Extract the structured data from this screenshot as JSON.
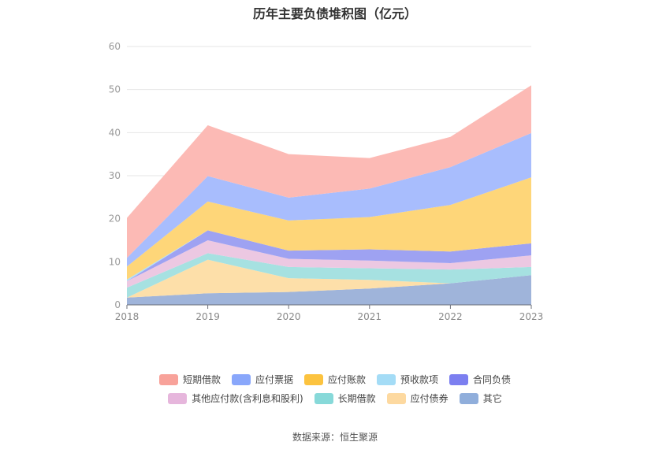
{
  "chart_data": {
    "type": "area",
    "stacked": true,
    "title": "历年主要负债堆积图（亿元）",
    "x": [
      "2018",
      "2019",
      "2020",
      "2021",
      "2022",
      "2023"
    ],
    "ylim": [
      0,
      60
    ],
    "yticks": [
      0,
      10,
      20,
      30,
      40,
      50,
      60
    ],
    "grid": true,
    "legend_position": "bottom",
    "series": [
      {
        "name": "其它",
        "color": "#9fb4da",
        "values": [
          1.7,
          2.7,
          3.0,
          3.8,
          5.0,
          6.9
        ]
      },
      {
        "name": "应付债券",
        "color": "#fddfa9",
        "values": [
          0.0,
          7.8,
          3.2,
          2.0,
          0.0,
          0.0
        ]
      },
      {
        "name": "长期借款",
        "color": "#a6e1e1",
        "values": [
          2.3,
          1.5,
          2.6,
          2.7,
          3.2,
          1.9
        ]
      },
      {
        "name": "其他应付款(含利息和股利)",
        "color": "#ecc8e2",
        "values": [
          1.5,
          3.0,
          1.9,
          1.8,
          1.5,
          2.7
        ]
      },
      {
        "name": "合同负债",
        "color": "#9ea2f2",
        "values": [
          0.0,
          2.3,
          1.9,
          2.6,
          2.7,
          2.8
        ]
      },
      {
        "name": "预收款项",
        "color": "#b0dff5",
        "values": [
          0.4,
          0.0,
          0.0,
          0.0,
          0.0,
          0.0
        ]
      },
      {
        "name": "应付账款",
        "color": "#fed679",
        "values": [
          3.0,
          6.7,
          7.0,
          7.5,
          10.8,
          15.3
        ]
      },
      {
        "name": "应付票据",
        "color": "#a8bdfd",
        "values": [
          2.0,
          5.9,
          5.3,
          6.6,
          8.8,
          10.3
        ]
      },
      {
        "name": "短期借款",
        "color": "#fcbab5",
        "values": [
          9.3,
          11.8,
          10.1,
          7.1,
          7.0,
          11.1
        ]
      }
    ]
  },
  "legend": {
    "row1": [
      {
        "label": "短期借款",
        "color": "#f8a29a"
      },
      {
        "label": "应付票据",
        "color": "#89a7fb"
      },
      {
        "label": "应付账款",
        "color": "#fcc33f"
      },
      {
        "label": "预收款项",
        "color": "#a4dcf6"
      },
      {
        "label": "合同负债",
        "color": "#7c7ff0"
      }
    ],
    "row2": [
      {
        "label": "其他应付款(含利息和股利)",
        "color": "#e6b6dc"
      },
      {
        "label": "长期借款",
        "color": "#87d9d9"
      },
      {
        "label": "应付债券",
        "color": "#fdd9a0"
      },
      {
        "label": "其它",
        "color": "#90aedb"
      }
    ]
  },
  "source": "数据来源：恒生聚源"
}
